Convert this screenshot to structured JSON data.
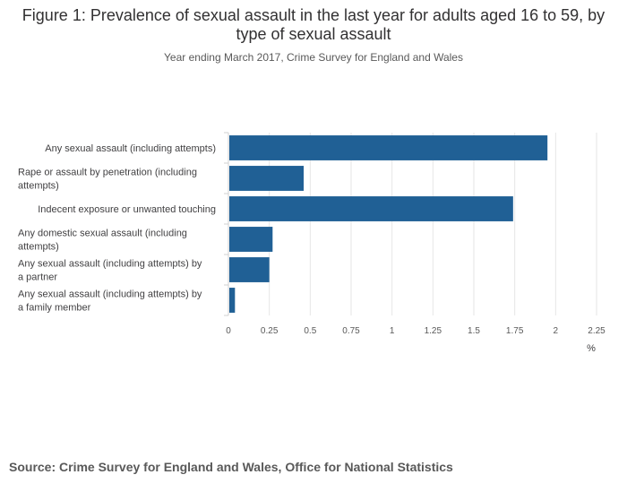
{
  "header": {
    "title": "Figure 1: Prevalence of sexual assault in the last year for adults aged 16 to 59, by type of sexual assault",
    "subtitle": "Year ending March 2017, Crime Survey for England and Wales"
  },
  "footer": {
    "source": "Source: Crime Survey for England and Wales, Office for National Statistics"
  },
  "chart_data": {
    "type": "bar",
    "orientation": "horizontal",
    "title": "Figure 1: Prevalence of sexual assault in the last year for adults aged 16 to 59, by type of sexual assault",
    "subtitle": "Year ending March 2017, Crime Survey for England and Wales",
    "categories": [
      "Any sexual assault (including attempts)",
      "Rape or assault by penetration (including attempts)",
      "Indecent exposure or unwanted touching",
      "Any domestic sexual assault (including attempts)",
      "Any sexual assault (including attempts) by a partner",
      "Any sexual assault (including attempts) by a family member"
    ],
    "label_lines": [
      [
        "Any sexual assault (including attempts)"
      ],
      [
        "Rape or assault by penetration (including",
        "attempts)"
      ],
      [
        "Indecent exposure or unwanted touching"
      ],
      [
        "Any domestic sexual assault (including",
        "attempts)"
      ],
      [
        "Any sexual assault (including attempts) by",
        "a partner"
      ],
      [
        "Any sexual assault (including attempts) by",
        "a family member"
      ]
    ],
    "values": [
      1.95,
      0.46,
      1.74,
      0.27,
      0.25,
      0.04
    ],
    "xlabel": "%",
    "ylabel": "",
    "xlim": [
      0,
      2.25
    ],
    "xticks": [
      0,
      0.25,
      0.5,
      0.75,
      1,
      1.25,
      1.5,
      1.75,
      2,
      2.25
    ],
    "xtick_labels": [
      "0",
      "0.25",
      "0.5",
      "0.75",
      "1",
      "1.25",
      "1.5",
      "1.75",
      "2",
      "2.25"
    ],
    "grid": true,
    "bar_color": "#206095",
    "grid_color": "#e6e6e6",
    "axis_color": "#d0d0d0"
  }
}
